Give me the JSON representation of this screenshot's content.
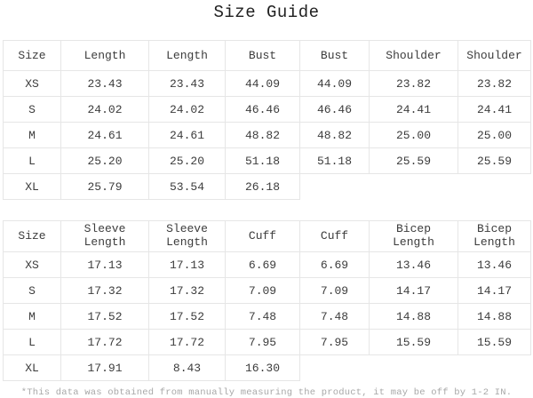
{
  "title": "Size Guide",
  "footnote": "*This data was obtained from manually measuring the product, it may be off by 1-2 IN.",
  "table1": {
    "headers": [
      "Size",
      "Length",
      "Length",
      "Bust",
      "Bust",
      "Shoulder",
      "Shoulder"
    ],
    "rows": [
      {
        "size": "XS",
        "values": [
          "23.43",
          "23.43",
          "44.09",
          "44.09",
          "23.82",
          "23.82"
        ]
      },
      {
        "size": "S",
        "values": [
          "24.02",
          "24.02",
          "46.46",
          "46.46",
          "24.41",
          "24.41"
        ]
      },
      {
        "size": "M",
        "values": [
          "24.61",
          "24.61",
          "48.82",
          "48.82",
          "25.00",
          "25.00"
        ]
      },
      {
        "size": "L",
        "values": [
          "25.20",
          "25.20",
          "51.18",
          "51.18",
          "25.59",
          "25.59"
        ]
      },
      {
        "size": "XL",
        "values": [
          "25.79",
          "53.54",
          "26.18",
          "",
          "",
          ""
        ]
      }
    ]
  },
  "table2": {
    "headers": [
      "Size",
      "Sleeve Length",
      "Sleeve Length",
      "Cuff",
      "Cuff",
      "Bicep Length",
      "Bicep Length"
    ],
    "rows": [
      {
        "size": "XS",
        "values": [
          "17.13",
          "17.13",
          "6.69",
          "6.69",
          "13.46",
          "13.46"
        ]
      },
      {
        "size": "S",
        "values": [
          "17.32",
          "17.32",
          "7.09",
          "7.09",
          "14.17",
          "14.17"
        ]
      },
      {
        "size": "M",
        "values": [
          "17.52",
          "17.52",
          "7.48",
          "7.48",
          "14.88",
          "14.88"
        ]
      },
      {
        "size": "L",
        "values": [
          "17.72",
          "17.72",
          "7.95",
          "7.95",
          "15.59",
          "15.59"
        ]
      },
      {
        "size": "XL",
        "values": [
          "17.91",
          "8.43",
          "16.30",
          "",
          "",
          ""
        ]
      }
    ]
  }
}
